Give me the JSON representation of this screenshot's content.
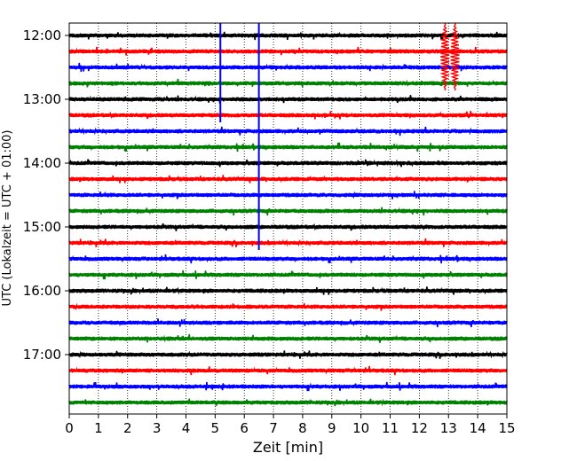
{
  "chart_data": {
    "type": "line",
    "xlabel": "Zeit  [min]",
    "ylabel": "UTC (Lokalzeit = UTC + 01:00)",
    "xlim": [
      0,
      15
    ],
    "x_ticks": [
      "0",
      "1",
      "2",
      "3",
      "4",
      "5",
      "6",
      "7",
      "8",
      "9",
      "10",
      "11",
      "12",
      "13",
      "14",
      "15"
    ],
    "y_tick_labels": [
      "12:00",
      "13:00",
      "14:00",
      "15:00",
      "16:00",
      "17:00"
    ],
    "row_interval_minutes": 15,
    "row_colors": [
      "#000000",
      "#ff0000",
      "#0000ff",
      "#008000"
    ],
    "rows": [
      {
        "time": "12:00",
        "color": "#000000"
      },
      {
        "time": "12:15",
        "color": "#ff0000"
      },
      {
        "time": "12:30",
        "color": "#0000ff"
      },
      {
        "time": "12:45",
        "color": "#008000"
      },
      {
        "time": "13:00",
        "color": "#000000"
      },
      {
        "time": "13:15",
        "color": "#ff0000"
      },
      {
        "time": "13:30",
        "color": "#0000ff"
      },
      {
        "time": "13:45",
        "color": "#008000"
      },
      {
        "time": "14:00",
        "color": "#000000"
      },
      {
        "time": "14:15",
        "color": "#ff0000"
      },
      {
        "time": "14:30",
        "color": "#0000ff"
      },
      {
        "time": "14:45",
        "color": "#008000"
      },
      {
        "time": "15:00",
        "color": "#000000"
      },
      {
        "time": "15:15",
        "color": "#ff0000"
      },
      {
        "time": "15:30",
        "color": "#0000ff"
      },
      {
        "time": "15:45",
        "color": "#008000"
      },
      {
        "time": "16:00",
        "color": "#000000"
      },
      {
        "time": "16:15",
        "color": "#ff0000"
      },
      {
        "time": "16:30",
        "color": "#0000ff"
      },
      {
        "time": "16:45",
        "color": "#008000"
      },
      {
        "time": "17:00",
        "color": "#000000"
      },
      {
        "time": "17:15",
        "color": "#ff0000"
      },
      {
        "time": "17:30",
        "color": "#0000ff"
      },
      {
        "time": "17:45",
        "color": "#008000"
      }
    ],
    "events": [
      {
        "name": "blue-spike-1",
        "x_min": 5.18,
        "color": "#0000ff",
        "from_row": 0,
        "to_row": 5
      },
      {
        "name": "blue-spike-2",
        "x_min": 6.5,
        "color": "#0000ff",
        "from_row": 0,
        "to_row": 13
      },
      {
        "name": "red-burst-1",
        "x_min": 12.88,
        "color": "#ff0000",
        "from_row": 0,
        "to_row": 3
      },
      {
        "name": "red-burst-2",
        "x_min": 13.22,
        "color": "#ff0000",
        "from_row": 0,
        "to_row": 3
      }
    ],
    "grid": {
      "x": true,
      "y": false
    },
    "trace_amplitude_rows": 0.13
  }
}
